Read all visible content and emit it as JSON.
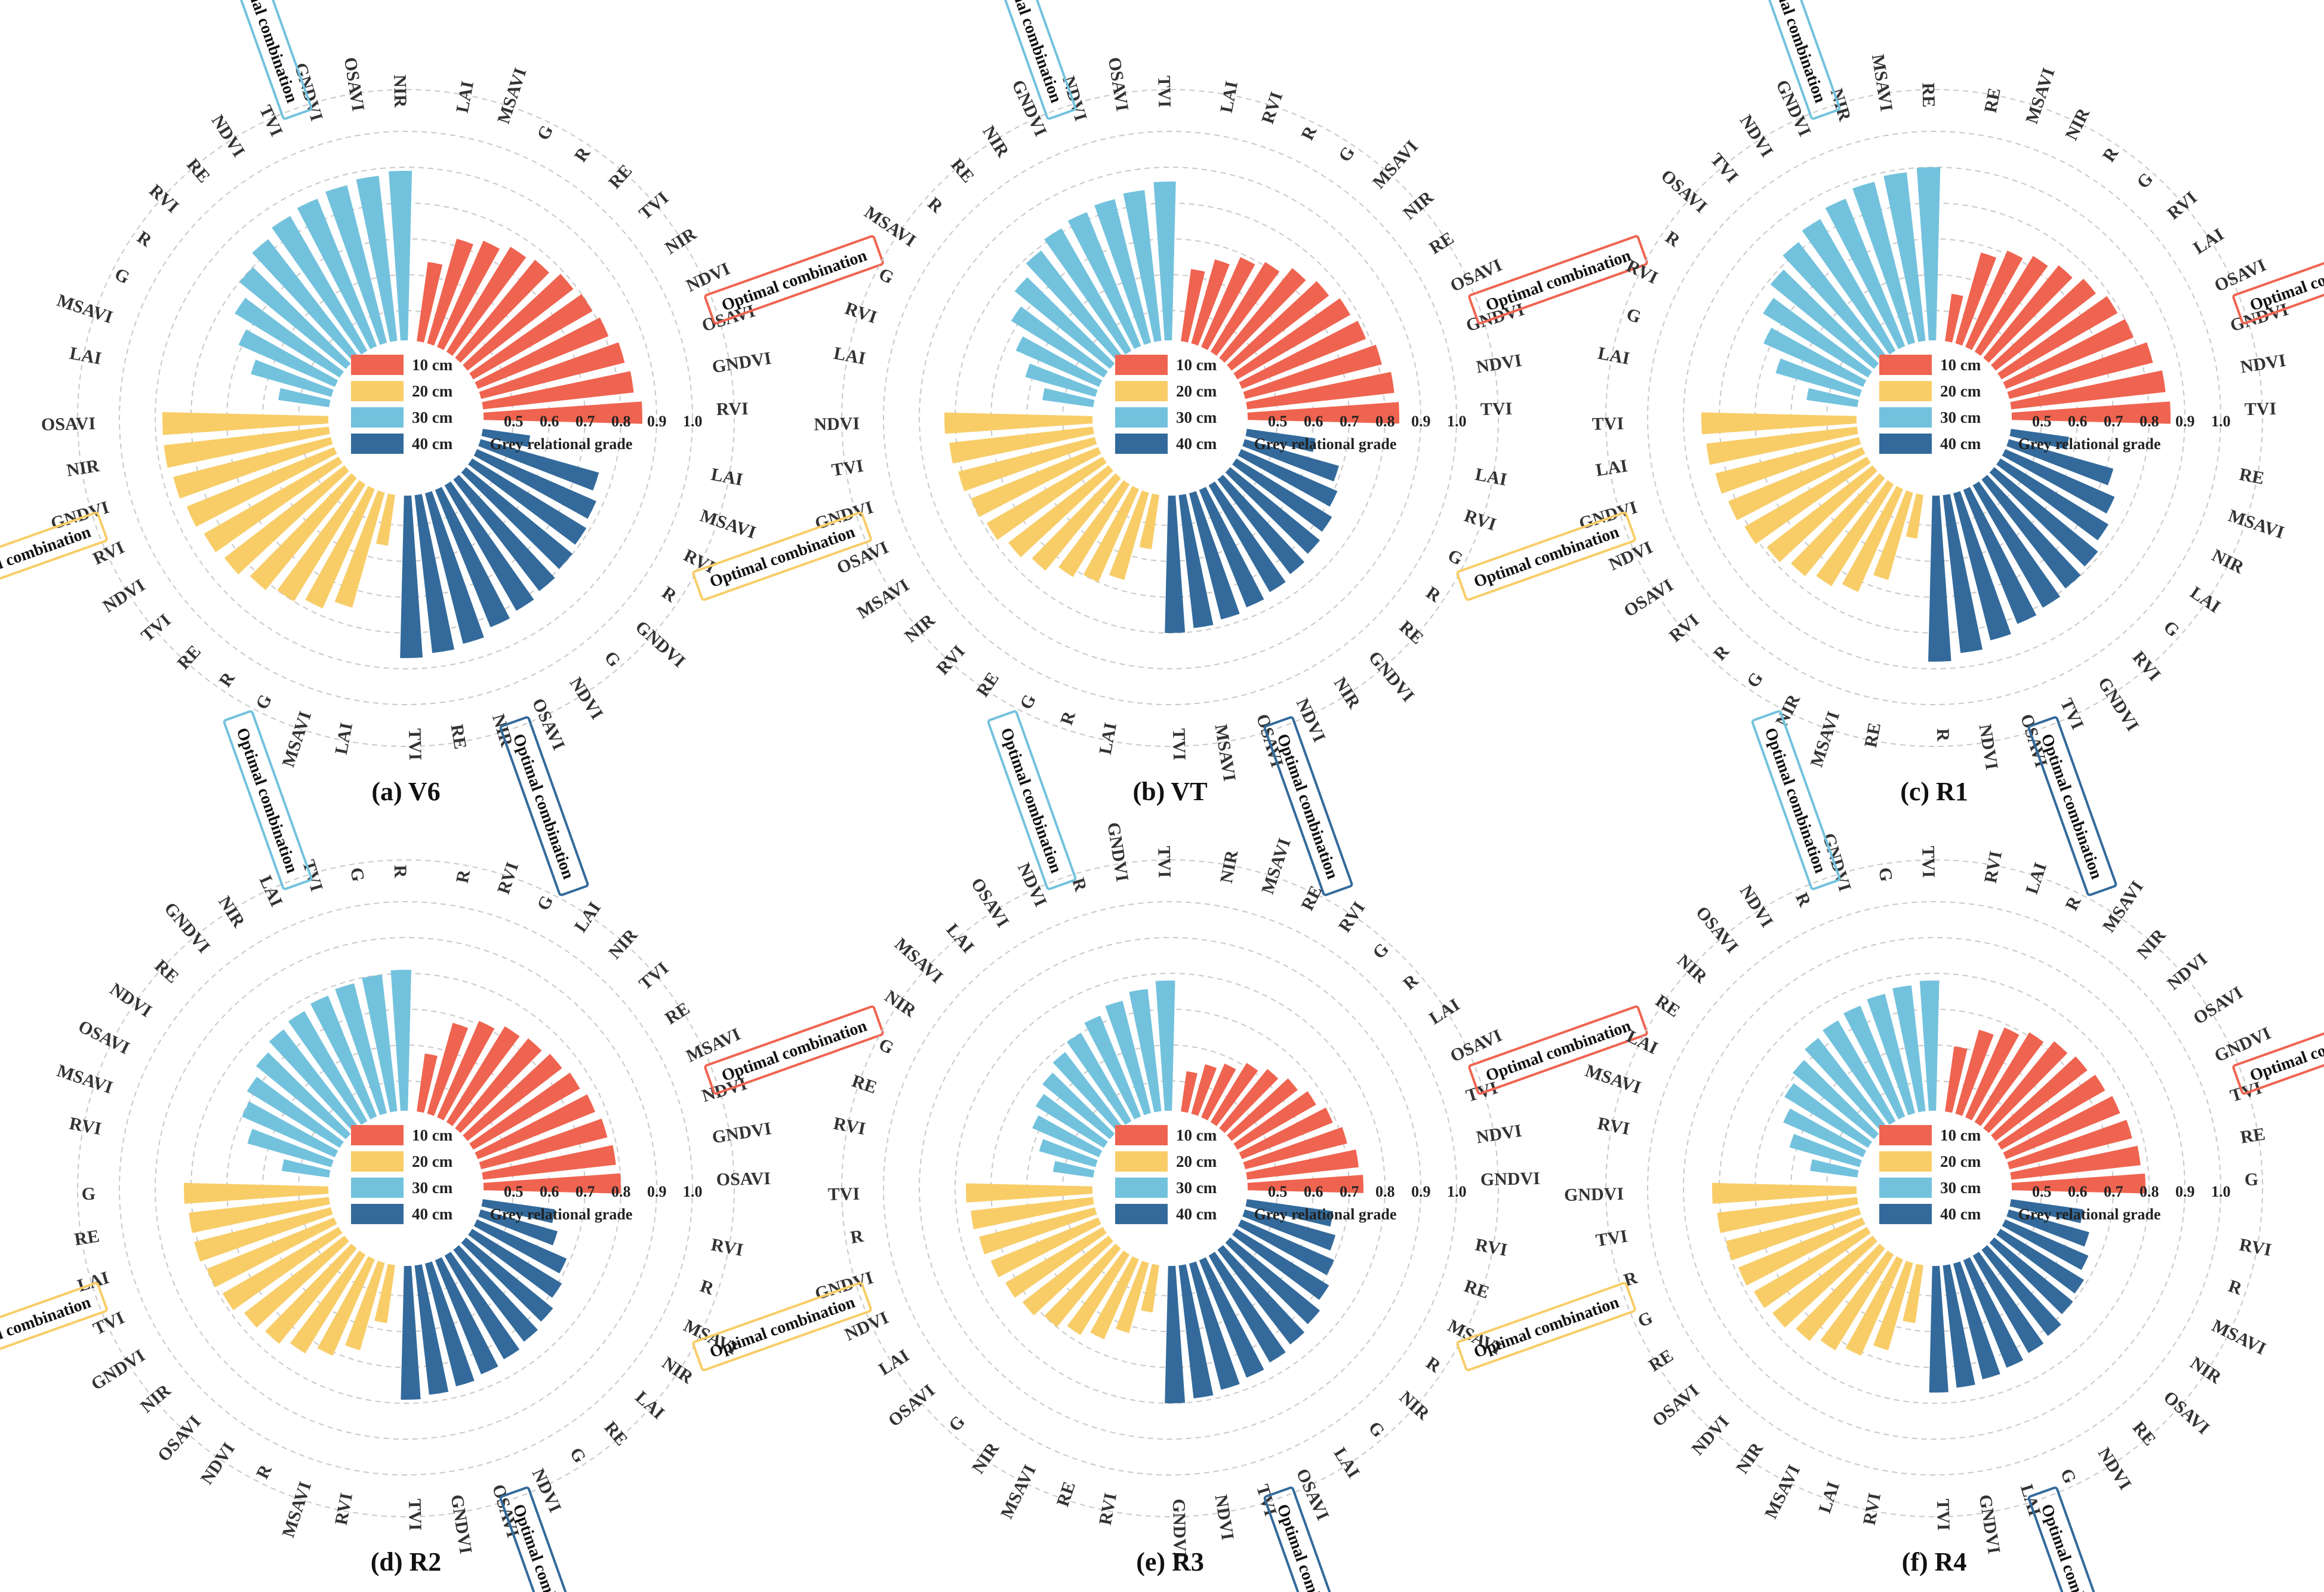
{
  "figure": {
    "axis_title": "Grey relational grade",
    "box_label": "Optimal combination",
    "ticks": [
      "0.5",
      "0.6",
      "0.7",
      "0.8",
      "0.9",
      "1.0"
    ],
    "tick_values": [
      0.5,
      0.6,
      0.7,
      0.8,
      0.9,
      1.0
    ],
    "legend": [
      "10 cm",
      "20 cm",
      "30 cm",
      "40 cm"
    ],
    "colors": [
      "#ef6450",
      "#f8cd68",
      "#73c2dd",
      "#336a9b"
    ]
  },
  "chart_data": [
    {
      "type": "bar",
      "panel": "(a) V6",
      "series": [
        {
          "name": "10 cm",
          "categories": [
            "LAI",
            "MSAVI",
            "G",
            "R",
            "RE",
            "TVI",
            "NIR",
            "NDVI",
            "OSAVI",
            "GNDVI",
            "RVI"
          ],
          "optimal": [
            "TVI",
            "NIR",
            "NDVI",
            "OSAVI",
            "GNDVI",
            "RVI"
          ],
          "values": [
            0.64,
            0.72,
            0.74,
            0.76,
            0.77,
            0.79,
            0.8,
            0.81,
            0.83,
            0.84,
            0.86
          ]
        },
        {
          "name": "20 cm",
          "categories": [
            "LAI",
            "MSAVI",
            "G",
            "R",
            "RE",
            "TVI",
            "NDVI",
            "RVI",
            "GNDVI",
            "NIR",
            "OSAVI"
          ],
          "optimal": [
            "TVI",
            "NDVI",
            "RVI",
            "GNDVI",
            "NIR",
            "OSAVI"
          ],
          "values": [
            0.56,
            0.75,
            0.78,
            0.8,
            0.82,
            0.84,
            0.85,
            0.86,
            0.87,
            0.88,
            0.88
          ]
        },
        {
          "name": "30 cm",
          "categories": [
            "LAI",
            "MSAVI",
            "G",
            "R",
            "RVI",
            "RE",
            "NDVI",
            "TVI",
            "GNDVI",
            "OSAVI",
            "NIR"
          ],
          "optimal": [
            "RE",
            "NDVI",
            "TVI",
            "GNDVI",
            "OSAVI",
            "NIR"
          ],
          "values": [
            0.56,
            0.65,
            0.71,
            0.76,
            0.8,
            0.83,
            0.85,
            0.86,
            0.87,
            0.88,
            0.89
          ]
        },
        {
          "name": "40 cm",
          "categories": [
            "LAI",
            "MSAVI",
            "RVI",
            "R",
            "GNDVI",
            "G",
            "NDVI",
            "OSAVI",
            "NIR",
            "RE",
            "TVI"
          ],
          "optimal": [
            "G",
            "NDVI",
            "OSAVI",
            "NIR",
            "RE",
            "TVI"
          ],
          "values": [
            0.55,
            0.76,
            0.78,
            0.79,
            0.8,
            0.81,
            0.82,
            0.83,
            0.85,
            0.86,
            0.87
          ]
        }
      ]
    },
    {
      "type": "bar",
      "panel": "(b) VT",
      "series": [
        {
          "name": "10 cm",
          "categories": [
            "LAI",
            "RVI",
            "R",
            "G",
            "MSAVI",
            "NIR",
            "RE",
            "OSAVI",
            "GNDVI",
            "NDVI",
            "TVI"
          ],
          "optimal": [
            "NIR",
            "RE",
            "OSAVI",
            "GNDVI",
            "NDVI",
            "TVI"
          ],
          "values": [
            0.62,
            0.66,
            0.69,
            0.71,
            0.74,
            0.76,
            0.78,
            0.79,
            0.81,
            0.83,
            0.84
          ]
        },
        {
          "name": "20 cm",
          "categories": [
            "LAI",
            "R",
            "G",
            "RE",
            "RVI",
            "NIR",
            "MSAVI",
            "OSAVI",
            "GNDVI",
            "TVI",
            "NDVI"
          ],
          "optimal": [
            "NIR",
            "MSAVI",
            "OSAVI",
            "GNDVI",
            "TVI",
            "NDVI"
          ],
          "values": [
            0.57,
            0.67,
            0.7,
            0.72,
            0.75,
            0.77,
            0.79,
            0.8,
            0.81,
            0.82,
            0.83
          ]
        },
        {
          "name": "30 cm",
          "categories": [
            "LAI",
            "RVI",
            "G",
            "MSAVI",
            "R",
            "RE",
            "NIR",
            "GNDVI",
            "NDVI",
            "OSAVI",
            "TVI"
          ],
          "optimal": [
            "RE",
            "NIR",
            "GNDVI",
            "NDVI",
            "OSAVI",
            "TVI"
          ],
          "values": [
            0.56,
            0.62,
            0.67,
            0.72,
            0.76,
            0.79,
            0.81,
            0.82,
            0.83,
            0.84,
            0.86
          ]
        },
        {
          "name": "40 cm",
          "categories": [
            "LAI",
            "RVI",
            "G",
            "R",
            "RE",
            "GNDVI",
            "NIR",
            "NDVI",
            "OSAVI",
            "MSAVI",
            "TVI"
          ],
          "optimal": [
            "GNDVI",
            "NIR",
            "NDVI",
            "OSAVI",
            "MSAVI",
            "TVI"
          ],
          "values": [
            0.61,
            0.69,
            0.71,
            0.73,
            0.74,
            0.75,
            0.76,
            0.77,
            0.78,
            0.79,
            0.8
          ]
        }
      ]
    },
    {
      "type": "bar",
      "panel": "(c) R1",
      "series": [
        {
          "name": "10 cm",
          "categories": [
            "RE",
            "MSAVI",
            "NIR",
            "R",
            "G",
            "RVI",
            "LAI",
            "OSAVI",
            "GNDVI",
            "NDVI",
            "TVI"
          ],
          "optimal": [
            "RVI",
            "LAI",
            "OSAVI",
            "GNDVI",
            "NDVI",
            "TVI"
          ],
          "values": [
            0.55,
            0.68,
            0.71,
            0.73,
            0.75,
            0.77,
            0.79,
            0.8,
            0.83,
            0.85,
            0.86
          ]
        },
        {
          "name": "20 cm",
          "categories": [
            "RE",
            "MSAVI",
            "NIR",
            "G",
            "R",
            "RVI",
            "OSAVI",
            "NDVI",
            "GNDVI",
            "LAI",
            "TVI"
          ],
          "optimal": [
            "RVI",
            "OSAVI",
            "NDVI",
            "GNDVI",
            "LAI",
            "TVI"
          ],
          "values": [
            0.54,
            0.67,
            0.73,
            0.75,
            0.77,
            0.79,
            0.81,
            0.82,
            0.83,
            0.84,
            0.85
          ]
        },
        {
          "name": "30 cm",
          "categories": [
            "LAI",
            "G",
            "RVI",
            "R",
            "OSAVI",
            "TVI",
            "NDVI",
            "GNDVI",
            "NIR",
            "MSAVI",
            "RE"
          ],
          "optimal": [
            "RVI",
            "R",
            "OSAVI",
            "TVI",
            "NDVI",
            "GNDVI"
          ],
          "values": [
            0.56,
            0.66,
            0.72,
            0.76,
            0.79,
            0.82,
            0.84,
            0.86,
            0.88,
            0.89,
            0.9
          ]
        },
        {
          "name": "40 cm",
          "categories": [
            "RE",
            "MSAVI",
            "NIR",
            "LAI",
            "G",
            "RVI",
            "GNDVI",
            "TVI",
            "OSAVI",
            "NDVI",
            "R"
          ],
          "optimal": [
            "G",
            "RVI",
            "GNDVI",
            "TVI",
            "OSAVI",
            "NDVI"
          ],
          "values": [
            0.58,
            0.72,
            0.75,
            0.77,
            0.79,
            0.8,
            0.81,
            0.82,
            0.84,
            0.86,
            0.88
          ]
        }
      ]
    },
    {
      "type": "bar",
      "panel": "(d) R2",
      "series": [
        {
          "name": "10 cm",
          "categories": [
            "R",
            "RVI",
            "G",
            "LAI",
            "NIR",
            "TVI",
            "RE",
            "MSAVI",
            "NDVI",
            "GNDVI",
            "OSAVI"
          ],
          "optimal": [
            "TVI",
            "RE",
            "MSAVI",
            "NDVI",
            "GNDVI",
            "OSAVI"
          ],
          "values": [
            0.58,
            0.68,
            0.71,
            0.73,
            0.74,
            0.75,
            0.76,
            0.77,
            0.78,
            0.79,
            0.8
          ]
        },
        {
          "name": "20 cm",
          "categories": [
            "RVI",
            "MSAVI",
            "R",
            "NDVI",
            "OSAVI",
            "NIR",
            "GNDVI",
            "TVI",
            "LAI",
            "RE",
            "G"
          ],
          "optimal": [
            "NIR",
            "GNDVI",
            "TVI",
            "LAI",
            "RE",
            "G"
          ],
          "values": [
            0.58,
            0.67,
            0.71,
            0.74,
            0.76,
            0.77,
            0.79,
            0.8,
            0.81,
            0.81,
            0.82
          ]
        },
        {
          "name": "30 cm",
          "categories": [
            "RVI",
            "MSAVI",
            "OSAVI",
            "NDVI",
            "RE",
            "GNDVI",
            "NIR",
            "LAI",
            "TVI",
            "G",
            "R"
          ],
          "optimal": [
            "GNDVI",
            "NIR",
            "LAI",
            "TVI",
            "G"
          ],
          "values": [
            0.55,
            0.66,
            0.7,
            0.72,
            0.74,
            0.76,
            0.77,
            0.78,
            0.79,
            0.8,
            0.81
          ]
        },
        {
          "name": "40 cm",
          "categories": [
            "RVI",
            "R",
            "MSAVI",
            "NIR",
            "LAI",
            "RE",
            "G",
            "NDVI",
            "OSAVI",
            "GNDVI",
            "TVI"
          ],
          "optimal": [
            "RE",
            "G",
            "NDVI",
            "OSAVI",
            "GNDVI",
            "TVI"
          ],
          "values": [
            0.62,
            0.64,
            0.69,
            0.71,
            0.73,
            0.74,
            0.75,
            0.76,
            0.77,
            0.78,
            0.79
          ]
        }
      ]
    },
    {
      "type": "bar",
      "panel": "(e) R3",
      "series": [
        {
          "name": "10 cm",
          "categories": [
            "NIR",
            "MSAVI",
            "RE",
            "RVI",
            "G",
            "R",
            "LAI",
            "OSAVI",
            "TVI",
            "NDVI",
            "GNDVI"
          ],
          "optimal": [
            "R",
            "LAI",
            "OSAVI",
            "TVI",
            "NDVI",
            "GNDVI"
          ],
          "values": [
            0.53,
            0.56,
            0.58,
            0.61,
            0.63,
            0.65,
            0.67,
            0.69,
            0.71,
            0.73,
            0.74
          ]
        },
        {
          "name": "20 cm",
          "categories": [
            "RVI",
            "RE",
            "MSAVI",
            "NIR",
            "G",
            "OSAVI",
            "LAI",
            "NDVI",
            "GNDVI",
            "R",
            "TVI"
          ],
          "optimal": [
            "OSAVI",
            "LAI",
            "NDVI",
            "GNDVI",
            "R",
            "TVI"
          ],
          "values": [
            0.55,
            0.62,
            0.66,
            0.68,
            0.7,
            0.72,
            0.73,
            0.74,
            0.75,
            0.76,
            0.77
          ]
        },
        {
          "name": "30 cm",
          "categories": [
            "RVI",
            "RE",
            "G",
            "NIR",
            "MSAVI",
            "LAI",
            "OSAVI",
            "NDVI",
            "R",
            "GNDVI",
            "TVI"
          ],
          "optimal": [
            "LAI",
            "OSAVI",
            "NDVI",
            "R",
            "GNDVI",
            "TVI"
          ],
          "values": [
            0.53,
            0.58,
            0.62,
            0.64,
            0.66,
            0.68,
            0.7,
            0.72,
            0.74,
            0.76,
            0.78
          ]
        },
        {
          "name": "40 cm",
          "categories": [
            "RVI",
            "RE",
            "MSAVI",
            "R",
            "NIR",
            "G",
            "LAI",
            "OSAVI",
            "TVI",
            "NDVI",
            "GNDVI"
          ],
          "optimal": [
            "G",
            "LAI",
            "OSAVI",
            "TVI",
            "NDVI",
            "GNDVI"
          ],
          "values": [
            0.66,
            0.68,
            0.7,
            0.72,
            0.74,
            0.75,
            0.76,
            0.77,
            0.78,
            0.79,
            0.8
          ]
        }
      ]
    },
    {
      "type": "bar",
      "panel": "(f) R4",
      "series": [
        {
          "name": "10 cm",
          "categories": [
            "RVI",
            "LAI",
            "R",
            "MSAVI",
            "NIR",
            "NDVI",
            "OSAVI",
            "GNDVI",
            "TVI",
            "RE",
            "G"
          ],
          "optimal": [
            "NDVI",
            "OSAVI",
            "GNDVI",
            "TVI",
            "RE",
            "G"
          ],
          "values": [
            0.6,
            0.66,
            0.69,
            0.71,
            0.73,
            0.74,
            0.75,
            0.76,
            0.77,
            0.78,
            0.79
          ]
        },
        {
          "name": "20 cm",
          "categories": [
            "RVI",
            "LAI",
            "MSAVI",
            "NIR",
            "NDVI",
            "OSAVI",
            "RE",
            "G",
            "R",
            "TVI",
            "GNDVI"
          ],
          "optimal": [
            "OSAVI",
            "RE",
            "G",
            "R",
            "TVI",
            "GNDVI"
          ],
          "values": [
            0.58,
            0.67,
            0.71,
            0.73,
            0.75,
            0.77,
            0.78,
            0.79,
            0.8,
            0.81,
            0.82
          ]
        },
        {
          "name": "30 cm",
          "categories": [
            "RVI",
            "MSAVI",
            "LAI",
            "RE",
            "NIR",
            "OSAVI",
            "NDVI",
            "R",
            "GNDVI",
            "G",
            "TVI"
          ],
          "optimal": [
            "OSAVI",
            "NDVI",
            "R",
            "GNDVI",
            "G",
            "TVI"
          ],
          "values": [
            0.55,
            0.62,
            0.66,
            0.69,
            0.71,
            0.73,
            0.74,
            0.75,
            0.76,
            0.77,
            0.78
          ]
        },
        {
          "name": "40 cm",
          "categories": [
            "RVI",
            "R",
            "MSAVI",
            "NIR",
            "OSAVI",
            "RE",
            "NDVI",
            "G",
            "LAI",
            "GNDVI",
            "TVI"
          ],
          "optimal": [
            "RE",
            "NDVI",
            "G",
            "LAI",
            "GNDVI",
            "TVI"
          ],
          "values": [
            0.62,
            0.65,
            0.67,
            0.69,
            0.7,
            0.72,
            0.73,
            0.74,
            0.75,
            0.76,
            0.77
          ]
        }
      ]
    }
  ]
}
